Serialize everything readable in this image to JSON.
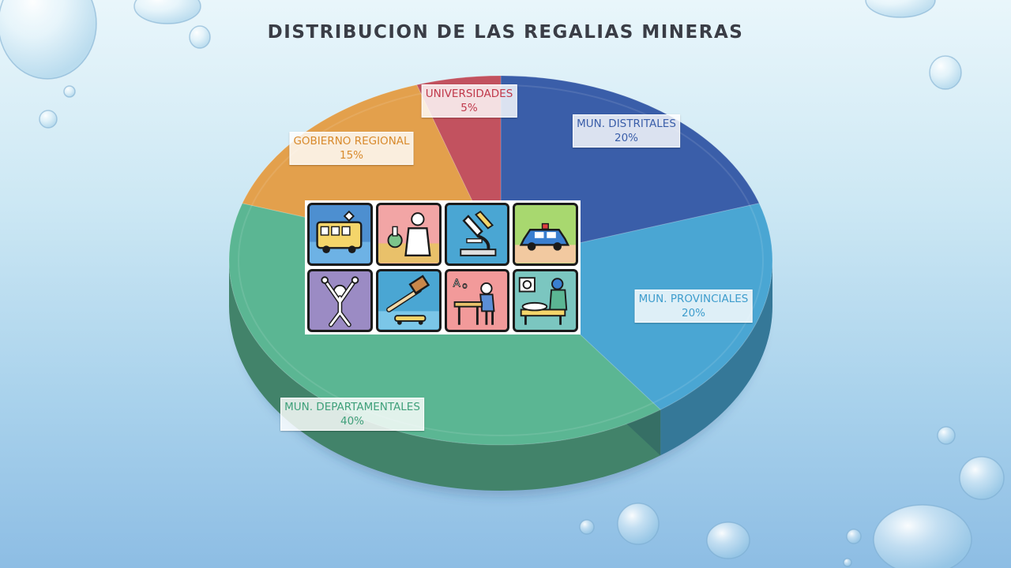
{
  "slide": {
    "title": "DISTRIBUCION DE LAS REGALIAS MINERAS"
  },
  "chart_data": {
    "type": "pie",
    "style": "3d",
    "title": "DISTRIBUCION DE LAS REGALIAS MINERAS",
    "start_angle_deg": 0,
    "direction": "clockwise",
    "slices": [
      {
        "label": "MUN. DISTRITALES",
        "value": 20,
        "value_label": "20%",
        "color": "#3a5ea9",
        "label_color": "#3a5ea9"
      },
      {
        "label": "MUN. PROVINCIALES",
        "value": 20,
        "value_label": "20%",
        "color": "#4aa6d3",
        "label_color": "#3e9dcd"
      },
      {
        "label": "MUN. DEPARTAMENTALES",
        "value": 40,
        "value_label": "40%",
        "color": "#5bb693",
        "label_color": "#3fa07a"
      },
      {
        "label": "GOBIERNO REGIONAL",
        "value": 15,
        "value_label": "15%",
        "color": "#e3a04c",
        "label_color": "#d88a2c"
      },
      {
        "label": "UNIVERSIDADES",
        "value": 5,
        "value_label": "5%",
        "color": "#c2525f",
        "label_color": "#c0394b"
      }
    ]
  },
  "illustration": {
    "tiles": [
      "bus-icon",
      "scientist-icon",
      "microscope-icon",
      "police-car-icon",
      "athlete-icon",
      "gavel-icon",
      "student-desk-icon",
      "doctor-patient-icon"
    ]
  }
}
